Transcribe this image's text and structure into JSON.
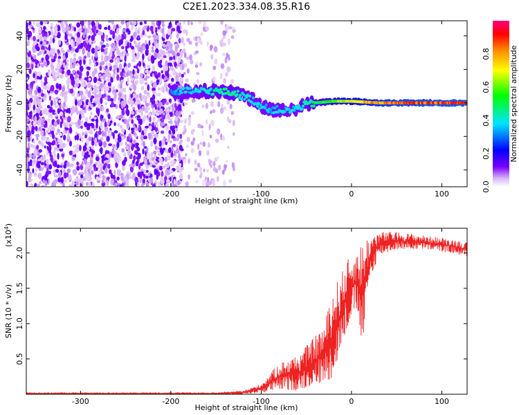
{
  "figure": {
    "title": "C2E1.2023.334.08.35.R16"
  },
  "chart_data": [
    {
      "type": "heatmap",
      "xlabel": "Height of straight line (km)",
      "ylabel": "Frequency (Hz)",
      "xlim": [
        -360,
        128
      ],
      "ylim": [
        -50,
        49
      ],
      "xticks": [
        -300,
        -200,
        -100,
        0,
        100
      ],
      "xtick_labels": [
        "-300",
        "-200",
        "-100",
        "0",
        "100"
      ],
      "yticks": [
        -40,
        -20,
        0,
        20,
        40
      ],
      "ytick_labels": [
        "-40",
        "-20",
        "0",
        "20",
        "40"
      ],
      "colorbar": {
        "label": "Normalized spectral amplitude",
        "range": [
          0.0,
          1.0
        ],
        "ticks": [
          0.0,
          0.2,
          0.4,
          0.6,
          0.8
        ],
        "tick_labels": [
          "0.0",
          "0.2",
          "0.4",
          "0.6",
          "0.8"
        ],
        "colormap": [
          "#ffffff",
          "#d9b8f5",
          "#7a00ff",
          "#0000ff",
          "#00e5ff",
          "#00ff00",
          "#ffff00",
          "#ff8c00",
          "#ff0000",
          "#ff0080"
        ]
      },
      "features": [
        {
          "description": "broadband noise",
          "x_range": [
            -360,
            -185
          ],
          "f_range": [
            -50,
            49
          ],
          "amplitude": 0.1
        },
        {
          "description": "sparse noise",
          "x_range": [
            -185,
            -130
          ],
          "f_range": [
            -50,
            49
          ],
          "amplitude": 0.02
        }
      ],
      "ridge": [
        {
          "x": -200,
          "f": 6.5,
          "amp": 0.35
        },
        {
          "x": -180,
          "f": 7,
          "amp": 0.4
        },
        {
          "x": -150,
          "f": 7,
          "amp": 0.45
        },
        {
          "x": -130,
          "f": 6,
          "amp": 0.45
        },
        {
          "x": -120,
          "f": 4,
          "amp": 0.42
        },
        {
          "x": -110,
          "f": 2,
          "amp": 0.4
        },
        {
          "x": -100,
          "f": -2,
          "amp": 0.4
        },
        {
          "x": -90,
          "f": -4,
          "amp": 0.38
        },
        {
          "x": -80,
          "f": -4,
          "amp": 0.38
        },
        {
          "x": -70,
          "f": -5,
          "amp": 0.4
        },
        {
          "x": -60,
          "f": -3,
          "amp": 0.4
        },
        {
          "x": -50,
          "f": -1,
          "amp": 0.45
        },
        {
          "x": -40,
          "f": 0,
          "amp": 0.5
        },
        {
          "x": -20,
          "f": 1,
          "amp": 0.6
        },
        {
          "x": 0,
          "f": 1,
          "amp": 0.75
        },
        {
          "x": 30,
          "f": 0,
          "amp": 0.85
        },
        {
          "x": 60,
          "f": 0,
          "amp": 0.9
        },
        {
          "x": 100,
          "f": 0,
          "amp": 0.93
        },
        {
          "x": 128,
          "f": 0,
          "amp": 0.95
        }
      ]
    },
    {
      "type": "line",
      "xlabel": "Height of straight line (km)",
      "ylabel": "SNR (10 * v/v)",
      "y_multiplier_label": "(x10",
      "y_multiplier_exponent": "4",
      "y_multiplier_close": ")",
      "xlim": [
        -360,
        128
      ],
      "ylim": [
        0,
        2.35
      ],
      "xticks": [
        -300,
        -200,
        -100,
        0,
        100
      ],
      "xtick_labels": [
        "-300",
        "-200",
        "-100",
        "0",
        "100"
      ],
      "yticks": [
        0.5,
        1.0,
        1.5,
        2.0
      ],
      "ytick_labels": [
        "0.5",
        "1.0",
        "1.5",
        "2.0"
      ],
      "color": "#ee2222",
      "envelope": [
        {
          "x": -360,
          "y_low": 0.0,
          "y_high": 0.02
        },
        {
          "x": -150,
          "y_low": 0.0,
          "y_high": 0.02
        },
        {
          "x": -120,
          "y_low": 0.0,
          "y_high": 0.05
        },
        {
          "x": -100,
          "y_low": 0.02,
          "y_high": 0.15
        },
        {
          "x": -80,
          "y_low": 0.05,
          "y_high": 0.45
        },
        {
          "x": -60,
          "y_low": 0.05,
          "y_high": 0.55
        },
        {
          "x": -45,
          "y_low": 0.1,
          "y_high": 0.75
        },
        {
          "x": -30,
          "y_low": 0.15,
          "y_high": 1.0
        },
        {
          "x": -20,
          "y_low": 0.25,
          "y_high": 1.5
        },
        {
          "x": -12,
          "y_low": 0.6,
          "y_high": 1.7
        },
        {
          "x": -5,
          "y_low": 0.9,
          "y_high": 1.9
        },
        {
          "x": 5,
          "y_low": 1.2,
          "y_high": 2.0
        },
        {
          "x": 13,
          "y_low": 0.6,
          "y_high": 2.2
        },
        {
          "x": 20,
          "y_low": 1.6,
          "y_high": 2.25
        },
        {
          "x": 30,
          "y_low": 1.95,
          "y_high": 2.3
        },
        {
          "x": 50,
          "y_low": 2.05,
          "y_high": 2.3
        },
        {
          "x": 80,
          "y_low": 2.05,
          "y_high": 2.25
        },
        {
          "x": 110,
          "y_low": 2.0,
          "y_high": 2.2
        },
        {
          "x": 128,
          "y_low": 1.95,
          "y_high": 2.15
        }
      ]
    }
  ]
}
